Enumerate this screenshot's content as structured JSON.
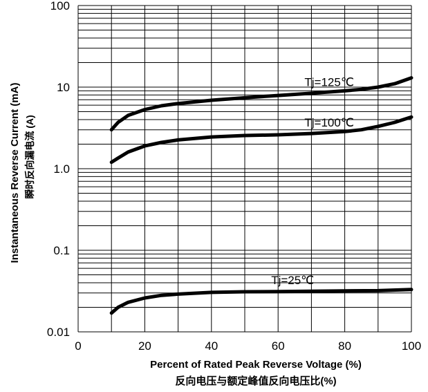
{
  "chart_data": {
    "type": "line",
    "title": "",
    "xlabel": "Percent of Rated Peak Reverse Voltage (%)",
    "xlabel_cn": "反向电压与额定峰值反向电压比(%)",
    "ylabel": "Instantaneous Reverse Current (mA)",
    "ylabel_cn": "瞬时反向漏电流 (A)",
    "xlim": [
      0,
      100
    ],
    "ylim": [
      0.01,
      100
    ],
    "yscale": "log",
    "grid": true,
    "x_ticks": [
      0,
      20,
      40,
      60,
      80,
      100
    ],
    "x_tick_labels": [
      "0",
      "20",
      "40",
      "60",
      "80",
      "100"
    ],
    "y_ticks": [
      0.01,
      0.1,
      1,
      10,
      100
    ],
    "y_tick_labels": [
      "0.01",
      "0.1",
      "1.0",
      "10",
      "100"
    ],
    "series": [
      {
        "name": "Tj=125℃",
        "x": [
          10,
          12,
          15,
          20,
          25,
          30,
          40,
          50,
          60,
          70,
          80,
          85,
          90,
          95,
          100
        ],
        "y": [
          3.0,
          3.7,
          4.5,
          5.3,
          5.9,
          6.3,
          6.9,
          7.4,
          7.9,
          8.4,
          9.0,
          9.4,
          10.0,
          11.0,
          13.0
        ]
      },
      {
        "name": "Tj=100℃",
        "x": [
          10,
          12,
          15,
          20,
          25,
          30,
          40,
          50,
          60,
          70,
          80,
          85,
          90,
          95,
          100
        ],
        "y": [
          1.2,
          1.35,
          1.6,
          1.9,
          2.1,
          2.25,
          2.45,
          2.55,
          2.6,
          2.7,
          2.85,
          3.0,
          3.3,
          3.7,
          4.3
        ]
      },
      {
        "name": "Tj=25℃",
        "x": [
          10,
          12,
          15,
          20,
          25,
          30,
          40,
          50,
          60,
          70,
          80,
          90,
          100
        ],
        "y": [
          0.017,
          0.02,
          0.023,
          0.026,
          0.028,
          0.029,
          0.0305,
          0.031,
          0.0312,
          0.0315,
          0.0318,
          0.032,
          0.033
        ]
      }
    ]
  }
}
